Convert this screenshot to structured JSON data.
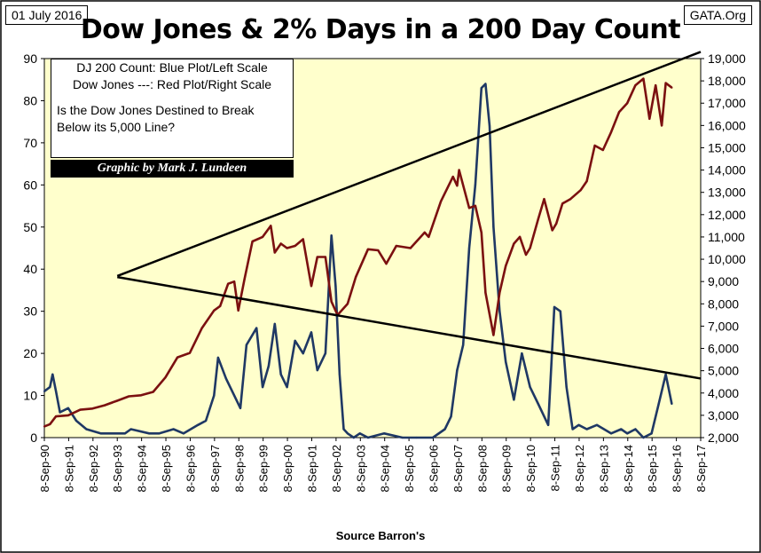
{
  "header": {
    "date": "01 July 2016",
    "source": "GATA.Org",
    "title": "Dow Jones & 2% Days in a 200 Day Count"
  },
  "annotation": {
    "line1": "DJ 200 Count: Blue Plot/Left Scale",
    "line2": "Dow Jones ---: Red Plot/Right Scale",
    "question1": "Is the Dow Jones Destined to Break",
    "question2": "Below its 5,000 Line?"
  },
  "credit": "Graphic by Mark J. Lundeen",
  "x_caption": "Source Barron's",
  "colors": {
    "plot_background": "#FFFFCC",
    "dj_count": "#1F3864",
    "dow_jones": "#7B1010",
    "trendline": "#000000"
  },
  "chart_data": {
    "type": "line",
    "title": "Dow Jones & 2% Days in a 200 Day Count",
    "xlabel": "Source Barron's",
    "x_range": [
      "1990-09-08",
      "2017-09-08"
    ],
    "x_ticks": [
      "8-Sep-90",
      "8-Sep-91",
      "8-Sep-92",
      "8-Sep-93",
      "8-Sep-94",
      "8-Sep-95",
      "8-Sep-96",
      "8-Sep-97",
      "8-Sep-98",
      "8-Sep-99",
      "8-Sep-00",
      "8-Sep-01",
      "8-Sep-02",
      "8-Sep-03",
      "8-Sep-04",
      "8-Sep-05",
      "8-Sep-06",
      "8-Sep-07",
      "8-Sep-08",
      "8-Sep-09",
      "8-Sep-10",
      "8-Sep-11",
      "8-Sep-12",
      "8-Sep-13",
      "8-Sep-14",
      "8-Sep-15",
      "8-Sep-16",
      "8-Sep-17"
    ],
    "y_left": {
      "min": 0,
      "max": 90,
      "ticks": [
        "0",
        "10",
        "20",
        "30",
        "40",
        "50",
        "60",
        "70",
        "80",
        "90"
      ]
    },
    "y_right": {
      "min": 2000,
      "max": 19000,
      "ticks": [
        "2,000",
        "3,000",
        "4,000",
        "5,000",
        "6,000",
        "7,000",
        "8,000",
        "9,000",
        "10,000",
        "11,000",
        "12,000",
        "13,000",
        "14,000",
        "15,000",
        "16,000",
        "17,000",
        "18,000",
        "19,000"
      ]
    },
    "grid": false,
    "series": [
      {
        "axis": "left",
        "x": [
          "1990-09-08",
          "1990-12-01",
          "1991-01-10",
          "1991-03-01",
          "1991-05-01",
          "1991-09-01",
          "1992-01-01",
          "1992-06-01",
          "1993-01-01",
          "1994-01-01",
          "1994-04-01",
          "1995-01-01",
          "1995-06-01",
          "1996-01-01",
          "1996-06-01",
          "1997-01-01",
          "1997-05-01",
          "1997-09-01",
          "1997-11-01",
          "1998-03-01",
          "1998-06-01",
          "1998-10-01",
          "1999-01-01",
          "1999-06-01",
          "1999-09-01",
          "1999-12-01",
          "2000-03-01",
          "2000-06-01",
          "2000-09-01",
          "2001-01-01",
          "2001-05-01",
          "2001-09-01",
          "2001-12-01",
          "2002-04-01",
          "2002-07-01",
          "2002-09-01",
          "2002-11-01",
          "2003-01-01",
          "2003-03-01",
          "2003-06-01",
          "2003-09-01",
          "2004-01-01",
          "2004-09-01",
          "2005-06-01",
          "2006-01-01",
          "2006-09-01",
          "2007-03-01",
          "2007-06-01",
          "2007-09-01",
          "2007-12-01",
          "2008-03-01",
          "2008-06-01",
          "2008-09-01",
          "2008-11-01",
          "2009-01-01",
          "2009-03-01",
          "2009-06-01",
          "2009-09-01",
          "2010-01-01",
          "2010-05-01",
          "2010-09-01",
          "2011-01-01",
          "2011-06-01",
          "2011-09-01",
          "2011-12-01",
          "2012-03-01",
          "2012-06-01",
          "2012-09-01",
          "2013-01-01",
          "2013-06-01",
          "2014-01-01",
          "2014-06-01",
          "2014-09-01",
          "2015-01-01",
          "2015-05-01",
          "2015-09-01",
          "2016-01-01",
          "2016-04-01",
          "2016-07-01"
        ],
        "values": [
          11,
          12,
          15,
          11,
          6,
          7,
          4,
          2,
          1,
          1,
          2,
          1,
          1,
          2,
          1,
          3,
          4,
          10,
          19,
          14,
          11,
          7,
          22,
          26,
          12,
          17,
          27,
          15,
          12,
          23,
          20,
          25,
          16,
          20,
          48,
          36,
          15,
          2,
          1,
          0,
          1,
          0,
          1,
          0,
          0,
          0,
          2,
          5,
          16,
          22,
          45,
          60,
          83,
          84,
          74,
          50,
          30,
          18,
          9,
          20,
          12,
          8,
          3,
          31,
          30,
          12,
          2,
          3,
          2,
          3,
          1,
          2,
          1,
          2,
          0,
          1,
          9,
          15,
          8
        ]
      },
      {
        "axis": "right",
        "x": [
          "1990-09-08",
          "1990-12-01",
          "1991-03-01",
          "1991-09-01",
          "1992-03-01",
          "1992-09-01",
          "1993-03-01",
          "1993-09-01",
          "1994-03-01",
          "1994-09-01",
          "1995-03-01",
          "1995-09-01",
          "1996-03-01",
          "1996-09-01",
          "1997-03-01",
          "1997-09-01",
          "1997-12-01",
          "1998-04-01",
          "1998-07-01",
          "1998-09-01",
          "1998-12-01",
          "1999-04-01",
          "1999-09-01",
          "2000-01-01",
          "2000-03-01",
          "2000-06-01",
          "2000-09-01",
          "2001-01-01",
          "2001-05-01",
          "2001-09-01",
          "2001-12-01",
          "2002-04-01",
          "2002-07-01",
          "2002-10-01",
          "2003-03-01",
          "2003-07-01",
          "2004-01-01",
          "2004-06-01",
          "2004-10-01",
          "2005-03-01",
          "2005-10-01",
          "2006-05-01",
          "2006-07-01",
          "2007-01-01",
          "2007-07-01",
          "2007-09-01",
          "2007-10-01",
          "2008-03-01",
          "2008-06-01",
          "2008-09-01",
          "2008-11-01",
          "2009-03-01",
          "2009-06-01",
          "2009-09-01",
          "2010-01-01",
          "2010-04-01",
          "2010-07-01",
          "2010-09-01",
          "2011-01-01",
          "2011-04-01",
          "2011-08-01",
          "2011-10-01",
          "2012-01-01",
          "2012-05-01",
          "2012-10-01",
          "2013-01-01",
          "2013-05-01",
          "2013-09-01",
          "2014-01-01",
          "2014-05-01",
          "2014-09-01",
          "2015-01-01",
          "2015-05-01",
          "2015-08-01",
          "2015-11-01",
          "2016-02-01",
          "2016-04-01",
          "2016-07-01"
        ],
        "values": [
          2500,
          2600,
          2950,
          3000,
          3250,
          3300,
          3450,
          3650,
          3850,
          3900,
          4050,
          4700,
          5600,
          5800,
          6900,
          7700,
          7900,
          8900,
          9000,
          7700,
          9100,
          10800,
          11000,
          11500,
          10300,
          10700,
          10500,
          10600,
          10900,
          8800,
          10100,
          10100,
          8100,
          7500,
          8000,
          9200,
          10450,
          10400,
          9800,
          10600,
          10500,
          11200,
          11000,
          12600,
          13700,
          13300,
          14000,
          12300,
          12400,
          11200,
          8500,
          6600,
          8500,
          9700,
          10700,
          11000,
          10200,
          10500,
          11800,
          12700,
          11300,
          11600,
          12500,
          12700,
          13100,
          13500,
          15100,
          14900,
          15700,
          16600,
          17000,
          17800,
          18100,
          16300,
          17800,
          16000,
          17900,
          17700
        ]
      }
    ],
    "trendlines": [
      {
        "axis": "right",
        "from": [
          "1993-09-08",
          9250
        ],
        "to": [
          "2017-09-08",
          19300
        ]
      },
      {
        "axis": "right",
        "from": [
          "1993-09-08",
          9200
        ],
        "to": [
          "2017-09-08",
          4650
        ]
      }
    ]
  }
}
